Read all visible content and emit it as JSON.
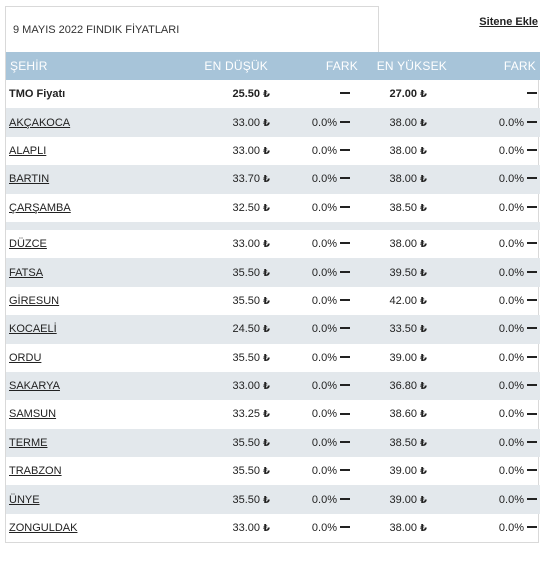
{
  "title": "9 MAYIS 2022 FINDIK FİYATLARI",
  "embed_link": "Sitene Ekle",
  "headers": {
    "city": "ŞEHİR",
    "low": "EN DÜŞÜK",
    "fark_low": "FARK",
    "high": "EN YÜKSEK",
    "fark_high": "FARK"
  },
  "unit_symbol": "₺",
  "tmo": {
    "label": "TMO Fiyatı",
    "low": "25.50",
    "high": "27.00"
  },
  "rows_group1": [
    {
      "city": "AKÇAKOCA",
      "low": "33.00",
      "fark_low": "0.0%",
      "high": "38.00",
      "fark_high": "0.0%"
    },
    {
      "city": "ALAPLI",
      "low": "33.00",
      "fark_low": "0.0%",
      "high": "38.00",
      "fark_high": "0.0%"
    },
    {
      "city": "BARTIN",
      "low": "33.70",
      "fark_low": "0.0%",
      "high": "38.00",
      "fark_high": "0.0%"
    },
    {
      "city": "ÇARŞAMBA",
      "low": "32.50",
      "fark_low": "0.0%",
      "high": "38.50",
      "fark_high": "0.0%"
    }
  ],
  "rows_group2": [
    {
      "city": "DÜZCE",
      "low": "33.00",
      "fark_low": "0.0%",
      "high": "38.00",
      "fark_high": "0.0%"
    },
    {
      "city": "FATSA",
      "low": "35.50",
      "fark_low": "0.0%",
      "high": "39.50",
      "fark_high": "0.0%"
    },
    {
      "city": "GİRESUN",
      "low": "35.50",
      "fark_low": "0.0%",
      "high": "42.00",
      "fark_high": "0.0%"
    },
    {
      "city": "KOCAELİ",
      "low": "24.50",
      "fark_low": "0.0%",
      "high": "33.50",
      "fark_high": "0.0%"
    },
    {
      "city": "ORDU",
      "low": "35.50",
      "fark_low": "0.0%",
      "high": "39.00",
      "fark_high": "0.0%"
    },
    {
      "city": "SAKARYA",
      "low": "33.00",
      "fark_low": "0.0%",
      "high": "36.80",
      "fark_high": "0.0%"
    },
    {
      "city": "SAMSUN",
      "low": "33.25",
      "fark_low": "0.0%",
      "high": "38.60",
      "fark_high": "0.0%"
    },
    {
      "city": "TERME",
      "low": "35.50",
      "fark_low": "0.0%",
      "high": "38.50",
      "fark_high": "0.0%"
    },
    {
      "city": "TRABZON",
      "low": "35.50",
      "fark_low": "0.0%",
      "high": "39.00",
      "fark_high": "0.0%"
    },
    {
      "city": "ÜNYE",
      "low": "35.50",
      "fark_low": "0.0%",
      "high": "39.00",
      "fark_high": "0.0%"
    },
    {
      "city": "ZONGULDAK",
      "low": "33.00",
      "fark_low": "0.0%",
      "high": "38.00",
      "fark_high": "0.0%"
    }
  ]
}
